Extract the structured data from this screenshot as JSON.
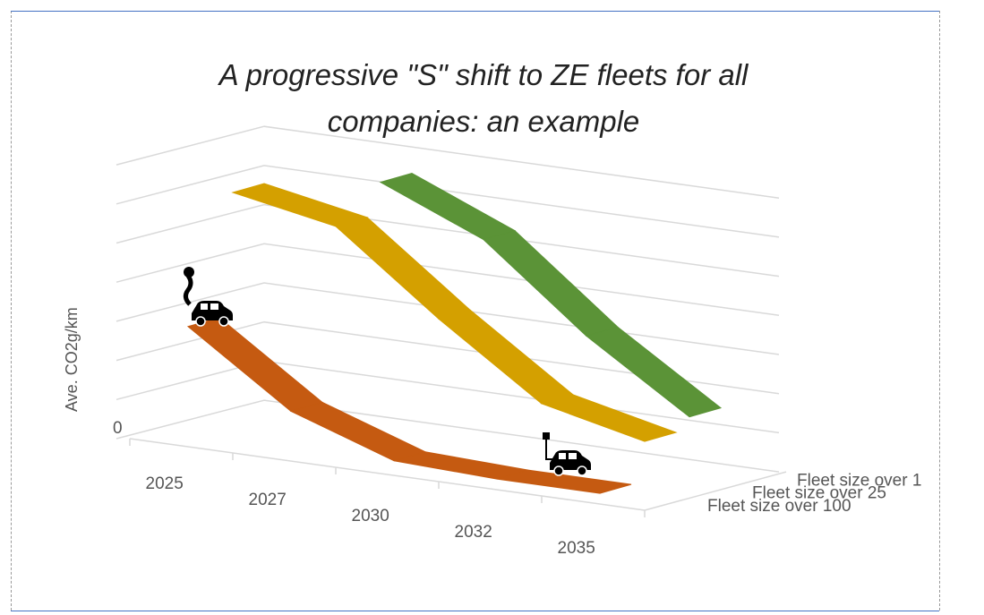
{
  "chart_data": {
    "type": "line",
    "subtype": "3d-line",
    "title": "A progressive \"S\" shift to ZE fleets for all companies: an example",
    "ylabel": "Ave. CO2g/km",
    "ytick_labels": [
      "0"
    ],
    "ylim": [
      0,
      6
    ],
    "grid": true,
    "categories": [
      "2025",
      "2027",
      "2030",
      "2032",
      "2035"
    ],
    "series": [
      {
        "name": "Fleet size over 100",
        "color": "#c55a11",
        "values": [
          3.0,
          1.2,
          0.3,
          0.2,
          0.2
        ]
      },
      {
        "name": "Fleet size over 25",
        "color": "#d4a000",
        "values": [
          6.1,
          5.6,
          3.6,
          1.8,
          1.2
        ]
      },
      {
        "name": "Fleet size over 1",
        "color": "#5b9337",
        "values": [
          null,
          6.4,
          5.3,
          3.2,
          1.5
        ]
      }
    ],
    "annotations": [
      {
        "icon": "polluting-car-icon",
        "at": "2025, Fleet size over 100"
      },
      {
        "icon": "electric-car-icon",
        "at": "2035, Fleet size over 100"
      }
    ]
  }
}
